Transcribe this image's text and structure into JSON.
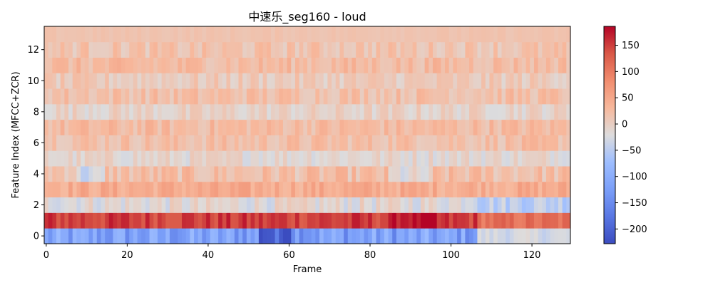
{
  "chart_data": {
    "type": "heatmap",
    "title": "中速乐_seg160 - loud",
    "xlabel": "Frame",
    "ylabel": "Feature Index (MFCC+ZCR)",
    "x_range": [
      -0.5,
      129.5
    ],
    "y_range": [
      -0.5,
      13.5
    ],
    "x_ticks": [
      0,
      20,
      40,
      60,
      80,
      100,
      120
    ],
    "y_ticks": [
      0,
      2,
      4,
      6,
      8,
      10,
      12
    ],
    "colormap": "coolwarm",
    "color_range": [
      -228,
      186
    ],
    "colorbar_ticks": [
      150,
      100,
      50,
      0,
      -50,
      -100,
      -150,
      -200
    ],
    "n_frames": 130,
    "n_features": 14,
    "row_profiles": [
      {
        "feature": 0,
        "base": -120,
        "variation": 45,
        "note": "darkest near frames 55-60 (~-215), lighter after frame 107 (~-30)"
      },
      {
        "feature": 1,
        "base": 150,
        "variation": 25,
        "note": "peaks near frames 88-95 (~185), softer after frame 107 (~110)"
      },
      {
        "feature": 2,
        "base": -15,
        "variation": 25
      },
      {
        "feature": 3,
        "base": 45,
        "variation": 20
      },
      {
        "feature": 4,
        "base": 20,
        "variation": 25
      },
      {
        "feature": 5,
        "base": -10,
        "variation": 20
      },
      {
        "feature": 6,
        "base": 20,
        "variation": 20
      },
      {
        "feature": 7,
        "base": 25,
        "variation": 20
      },
      {
        "feature": 8,
        "base": -5,
        "variation": 20
      },
      {
        "feature": 9,
        "base": 20,
        "variation": 20
      },
      {
        "feature": 10,
        "base": 5,
        "variation": 20
      },
      {
        "feature": 11,
        "base": 25,
        "variation": 20
      },
      {
        "feature": 12,
        "base": 15,
        "variation": 20
      },
      {
        "feature": 13,
        "base": 15,
        "variation": 5
      }
    ]
  }
}
